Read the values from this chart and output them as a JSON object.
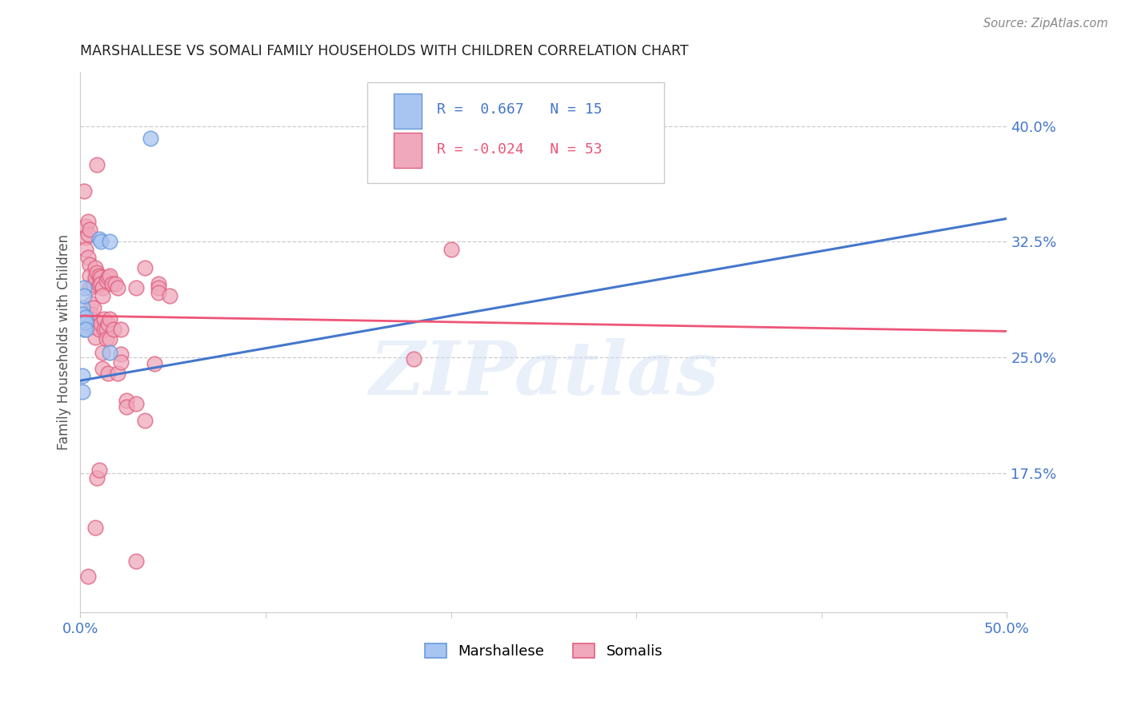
{
  "title": "MARSHALLESE VS SOMALI FAMILY HOUSEHOLDS WITH CHILDREN CORRELATION CHART",
  "source": "Source: ZipAtlas.com",
  "ylabel": "Family Households with Children",
  "xlim": [
    0.0,
    0.5
  ],
  "ylim": [
    0.085,
    0.435
  ],
  "yticks_right": [
    0.175,
    0.25,
    0.325,
    0.4
  ],
  "ytick_labels_right": [
    "17.5%",
    "25.0%",
    "32.5%",
    "40.0%"
  ],
  "blue_fill": "#a8c4f0",
  "blue_edge": "#6699dd",
  "pink_fill": "#f0a8bc",
  "pink_edge": "#e06080",
  "blue_line_color": "#4477cc",
  "pink_line_color": "#ee5577",
  "axis_tick_color": "#4477cc",
  "watermark_text": "ZIPatlas",
  "blue_trend": [
    0.0,
    0.235,
    0.5,
    0.34
  ],
  "pink_trend": [
    0.0,
    0.277,
    0.5,
    0.267
  ],
  "marshallese_points": [
    [
      0.001,
      0.282
    ],
    [
      0.001,
      0.278
    ],
    [
      0.002,
      0.295
    ],
    [
      0.002,
      0.29
    ],
    [
      0.002,
      0.272
    ],
    [
      0.002,
      0.268
    ],
    [
      0.003,
      0.276
    ],
    [
      0.003,
      0.273
    ],
    [
      0.003,
      0.268
    ],
    [
      0.001,
      0.238
    ],
    [
      0.001,
      0.228
    ],
    [
      0.01,
      0.327
    ],
    [
      0.011,
      0.325
    ],
    [
      0.016,
      0.325
    ],
    [
      0.016,
      0.253
    ],
    [
      0.038,
      0.392
    ]
  ],
  "somali_points": [
    [
      0.002,
      0.358
    ],
    [
      0.003,
      0.335
    ],
    [
      0.003,
      0.328
    ],
    [
      0.003,
      0.32
    ],
    [
      0.004,
      0.338
    ],
    [
      0.004,
      0.33
    ],
    [
      0.004,
      0.315
    ],
    [
      0.005,
      0.333
    ],
    [
      0.005,
      0.31
    ],
    [
      0.005,
      0.303
    ],
    [
      0.005,
      0.295
    ],
    [
      0.006,
      0.285
    ],
    [
      0.006,
      0.278
    ],
    [
      0.006,
      0.275
    ],
    [
      0.006,
      0.27
    ],
    [
      0.007,
      0.297
    ],
    [
      0.007,
      0.282
    ],
    [
      0.008,
      0.308
    ],
    [
      0.008,
      0.302
    ],
    [
      0.008,
      0.27
    ],
    [
      0.008,
      0.263
    ],
    [
      0.009,
      0.375
    ],
    [
      0.009,
      0.305
    ],
    [
      0.01,
      0.303
    ],
    [
      0.01,
      0.297
    ],
    [
      0.01,
      0.268
    ],
    [
      0.011,
      0.302
    ],
    [
      0.011,
      0.298
    ],
    [
      0.011,
      0.272
    ],
    [
      0.012,
      0.295
    ],
    [
      0.012,
      0.29
    ],
    [
      0.012,
      0.253
    ],
    [
      0.012,
      0.243
    ],
    [
      0.013,
      0.275
    ],
    [
      0.013,
      0.268
    ],
    [
      0.014,
      0.3
    ],
    [
      0.014,
      0.268
    ],
    [
      0.014,
      0.262
    ],
    [
      0.015,
      0.302
    ],
    [
      0.015,
      0.272
    ],
    [
      0.015,
      0.24
    ],
    [
      0.016,
      0.303
    ],
    [
      0.016,
      0.275
    ],
    [
      0.016,
      0.262
    ],
    [
      0.017,
      0.298
    ],
    [
      0.018,
      0.268
    ],
    [
      0.019,
      0.298
    ],
    [
      0.02,
      0.295
    ],
    [
      0.02,
      0.24
    ],
    [
      0.022,
      0.268
    ],
    [
      0.022,
      0.252
    ],
    [
      0.022,
      0.247
    ],
    [
      0.025,
      0.222
    ],
    [
      0.025,
      0.218
    ],
    [
      0.03,
      0.22
    ],
    [
      0.03,
      0.295
    ],
    [
      0.035,
      0.209
    ],
    [
      0.035,
      0.308
    ],
    [
      0.04,
      0.246
    ],
    [
      0.042,
      0.298
    ],
    [
      0.042,
      0.295
    ],
    [
      0.042,
      0.292
    ],
    [
      0.048,
      0.29
    ],
    [
      0.009,
      0.172
    ],
    [
      0.01,
      0.177
    ],
    [
      0.008,
      0.14
    ],
    [
      0.004,
      0.108
    ],
    [
      0.03,
      0.118
    ],
    [
      0.18,
      0.249
    ],
    [
      0.2,
      0.32
    ]
  ]
}
